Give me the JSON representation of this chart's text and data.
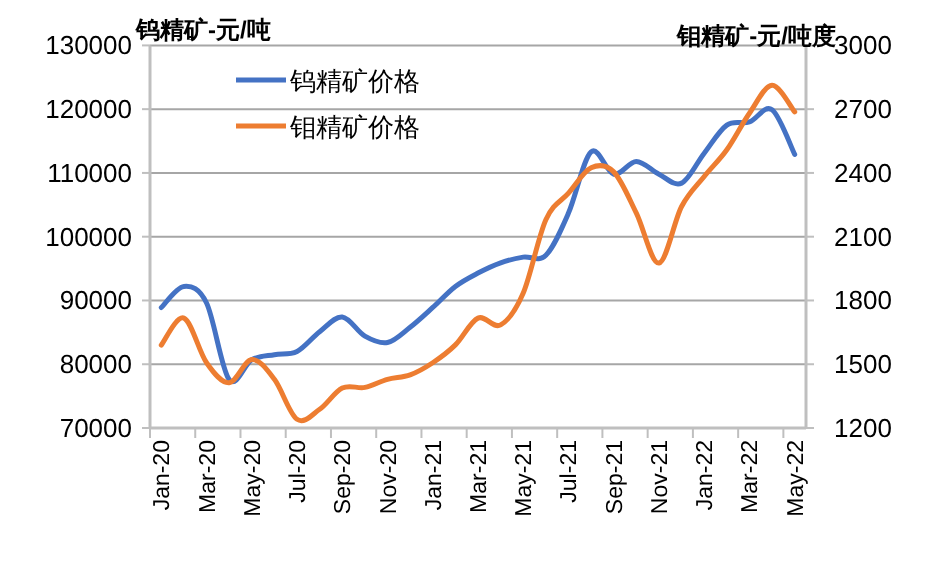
{
  "chart_data": {
    "type": "line",
    "ylabel": "钨精矿-元/吨",
    "y2label": "钼精矿-元/吨度",
    "categories": [
      "Jan-20",
      null,
      "Mar-20",
      null,
      "May-20",
      null,
      "Jul-20",
      null,
      "Sep-20",
      null,
      "Nov-20",
      null,
      "Jan-21",
      null,
      "Mar-21",
      null,
      "May-21",
      null,
      "Jul-21",
      null,
      "Sep-21",
      null,
      "Nov-21",
      null,
      "Jan-22",
      null,
      "Mar-22",
      null,
      "May-22"
    ],
    "series": [
      {
        "name": "钨精矿价格",
        "color": "#4472c4",
        "values": [
          88900,
          92200,
          89600,
          77600,
          80700,
          81500,
          82000,
          85100,
          87400,
          84400,
          83400,
          85800,
          88900,
          92200,
          94300,
          95900,
          96800,
          97100,
          103700,
          113300,
          109800,
          111800,
          109800,
          108400,
          113100,
          117500,
          118000,
          119900,
          112900
        ]
      },
      {
        "name": "钼精矿价格",
        "color": "#ed7d31",
        "axis": "y2",
        "values": [
          1590,
          1717,
          1507,
          1413,
          1522,
          1429,
          1241,
          1288,
          1388,
          1391,
          1429,
          1450,
          1507,
          1591,
          1717,
          1685,
          1835,
          2180,
          2305,
          2424,
          2405,
          2211,
          1976,
          2242,
          2383,
          2509,
          2681,
          2812,
          2687
        ]
      }
    ],
    "ylim": [
      70000,
      130000
    ],
    "yticks": [
      70000,
      80000,
      90000,
      100000,
      110000,
      120000,
      130000
    ],
    "y2lim": [
      1200,
      3000
    ],
    "y2ticks": [
      1200,
      1500,
      1800,
      2100,
      2400,
      2700,
      3000
    ],
    "grid": "y",
    "legend": "top left",
    "line_style": "solid",
    "marker": "none"
  }
}
